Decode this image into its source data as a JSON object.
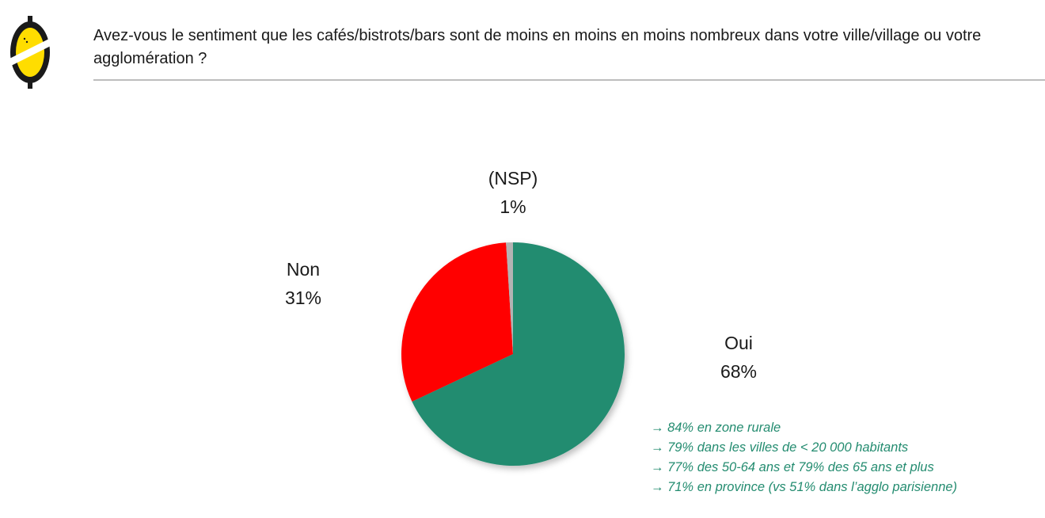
{
  "header": {
    "question": "Avez-vous le sentiment que les cafés/bistrots/bars sont de moins en moins en moins nombreux dans votre ville/village ou votre agglomération ?"
  },
  "chart_data": {
    "type": "pie",
    "title": "",
    "slices": [
      {
        "label": "Oui",
        "value": 68,
        "value_label": "68%",
        "color": "#248c70"
      },
      {
        "label": "Non",
        "value": 31,
        "value_label": "31%",
        "color": "#ff0000"
      },
      {
        "label": "(NSP)",
        "value": 1,
        "value_label": "1%",
        "color": "#b3b3b3"
      }
    ],
    "start": "12 o'clock, clockwise",
    "legend": "none (labels beside slices)"
  },
  "notes": [
    "→ 84% en zone rurale",
    "→ 79% dans les villes de < 20 000 habitants",
    "→ 77% des 50-64 ans et 79% des 65 ans et plus",
    "→ 71% en province (vs 51% dans l’agglo parisienne)"
  ],
  "colors": {
    "logo_yellow": "#ffdd00",
    "logo_dark": "#1a1a1a",
    "rule": "#bdbdbd",
    "note_text": "#248c70"
  }
}
